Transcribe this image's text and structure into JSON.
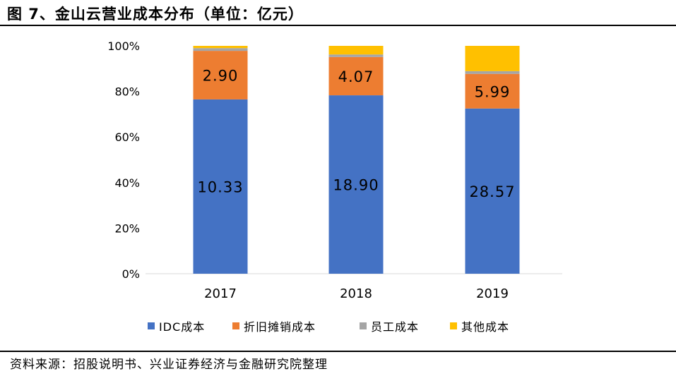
{
  "header": {
    "title": "图 7、金山云营业成本分布（单位：亿元）"
  },
  "footer": {
    "source": "资料来源：招股说明书、兴业证券经济与金融研究院整理"
  },
  "chart_data": {
    "type": "bar",
    "stacked": true,
    "percent_stacked": true,
    "title": "",
    "xlabel": "",
    "ylabel": "",
    "categories": [
      "2017",
      "2018",
      "2019"
    ],
    "ylim": [
      0,
      100
    ],
    "yticks": [
      "0%",
      "20%",
      "40%",
      "60%",
      "80%",
      "100%"
    ],
    "grid": false,
    "legend_position": "bottom",
    "series": [
      {
        "name": "IDC成本",
        "color": "#4472C4",
        "percent": [
          76.5,
          78.3,
          72.5
        ],
        "labels": [
          "10.33",
          "18.90",
          "28.57"
        ]
      },
      {
        "name": "折旧摊销成本",
        "color": "#ED7D31",
        "percent": [
          21.3,
          16.8,
          15.2
        ],
        "labels": [
          "2.90",
          "4.07",
          "5.99"
        ]
      },
      {
        "name": "员工成本",
        "color": "#A5A5A5",
        "percent": [
          1.2,
          1.1,
          1.2
        ],
        "labels": [
          "",
          "",
          ""
        ]
      },
      {
        "name": "其他成本",
        "color": "#FFC000",
        "percent": [
          1.0,
          3.8,
          11.1
        ],
        "labels": [
          "",
          "",
          ""
        ]
      }
    ]
  }
}
